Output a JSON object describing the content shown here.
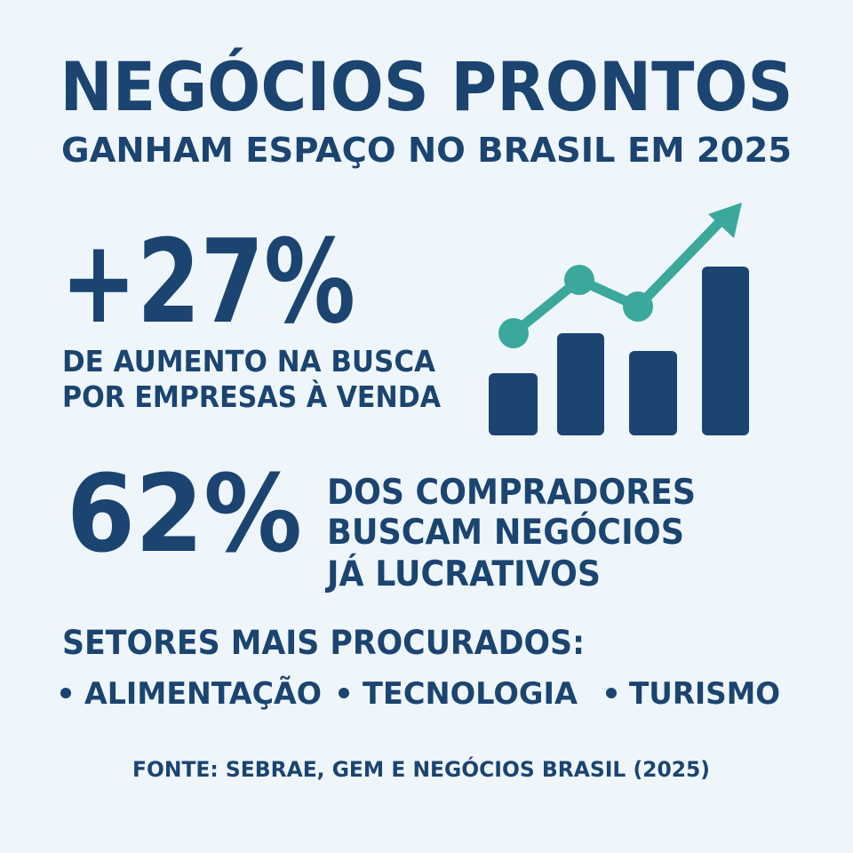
{
  "header": {
    "title": "NEGÓCIOS PRONTOS",
    "subtitle": "GANHAM ESPAÇO NO BRASIL EM 2025"
  },
  "stats": [
    {
      "value": "+27%",
      "lines": [
        "DE AUMENTO NA BUSCA",
        "POR EMPRESAS À VENDA"
      ]
    },
    {
      "value": "62%",
      "lines": [
        "DOS COMPRADORES",
        "BUSCAM NEGÓCIOS",
        "JÁ LUCRATIVOS"
      ]
    }
  ],
  "sectors": {
    "heading": "SETORES MAIS PROCURADOS:",
    "items": [
      "ALIMENTAÇÃO",
      "TECNOLOGIA",
      "TURISMO"
    ]
  },
  "source": "FONTE: SEBRAE, GEM E NEGÓCIOS BRASIL (2025)"
}
